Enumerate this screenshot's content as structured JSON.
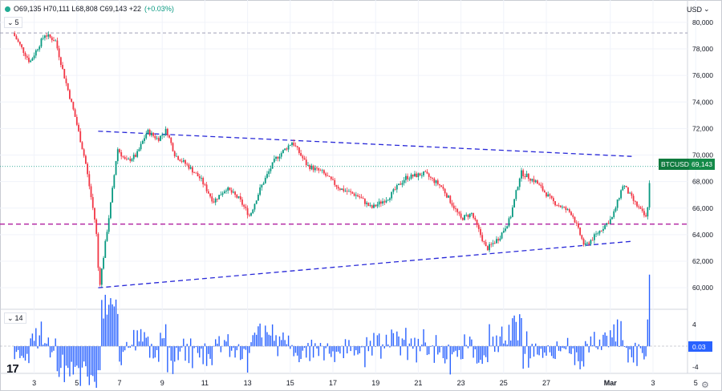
{
  "header": {
    "ohlc": "O69,135 H70,111 L68,808 C69,143 +22",
    "change_pct": "(+0.03%)",
    "interval_count": "5",
    "currency": "USD"
  },
  "symbol_tag": "BTCUSD",
  "price_tag": "69,143",
  "oscillator": {
    "period": "14",
    "value_tag": "0.03",
    "ticks": [
      "4",
      "-4"
    ]
  },
  "colors": {
    "up": "#089981",
    "down": "#f23645",
    "trendline": "#2828d8",
    "support": "#b020a0",
    "histogram": "#2962ff",
    "price_tag": "#138a48",
    "value_tag": "#2962ff"
  },
  "chart_data": {
    "type": "candlestick",
    "y_ticks": [
      "80,000",
      "78,000",
      "76,000",
      "74,000",
      "72,000",
      "70,000",
      "68,000",
      "66,000",
      "64,000",
      "62,000",
      "60,000"
    ],
    "x_ticks": [
      "3",
      "5",
      "7",
      "9",
      "11",
      "13",
      "15",
      "17",
      "19",
      "21",
      "23",
      "25",
      "27",
      "Mar",
      "3",
      "5"
    ],
    "x_tick_positions": [
      "Feb 3",
      "Feb 5",
      "Feb 7",
      "Feb 9",
      "Feb 11",
      "Feb 13",
      "Feb 15",
      "Feb 17",
      "Feb 19",
      "Feb 21",
      "Feb 23",
      "Feb 25",
      "Feb 27",
      "Mar 1",
      "Mar 3",
      "Mar 5"
    ],
    "ylim": [
      58500,
      80600
    ],
    "x_axis_start": "Feb 2",
    "x_axis_end": "Mar 6",
    "upper_trendline": [
      [
        "Feb 6",
        71800
      ],
      [
        "Mar 2",
        69900
      ]
    ],
    "lower_trendline": [
      [
        "Feb 6",
        60000
      ],
      [
        "Mar 2",
        63500
      ]
    ],
    "support_level": 64800,
    "dashed_top_level": 79200,
    "last_close": 69143,
    "price_path": [
      [
        "Feb 2",
        79200
      ],
      [
        "Feb 2.8",
        77000
      ],
      [
        "Feb 3.5",
        79100
      ],
      [
        "Feb 4",
        78600
      ],
      [
        "Feb 4.4",
        76000
      ],
      [
        "Feb 4.9",
        73000
      ],
      [
        "Feb 5.4",
        69500
      ],
      [
        "Feb 5.9",
        64500
      ],
      [
        "Feb 6.05",
        60000
      ],
      [
        "Feb 6.6",
        66500
      ],
      [
        "Feb 6.9",
        70500
      ],
      [
        "Feb 7.3",
        69500
      ],
      [
        "Feb 7.8",
        70000
      ],
      [
        "Feb 8.3",
        71800
      ],
      [
        "Feb 8.8",
        71200
      ],
      [
        "Feb 9.2",
        71900
      ],
      [
        "Feb 9.6",
        70000
      ],
      [
        "Feb 10.2",
        69200
      ],
      [
        "Feb 10.8",
        68200
      ],
      [
        "Feb 11.4",
        66500
      ],
      [
        "Feb 12",
        67500
      ],
      [
        "Feb 12.6",
        66700
      ],
      [
        "Feb 13.1",
        65400
      ],
      [
        "Feb 13.6",
        67500
      ],
      [
        "Feb 14.3",
        69700
      ],
      [
        "Feb 15.1",
        71000
      ],
      [
        "Feb 15.8",
        69200
      ],
      [
        "Feb 16.5",
        68700
      ],
      [
        "Feb 17.3",
        67500
      ],
      [
        "Feb 18.2",
        66900
      ],
      [
        "Feb 18.8",
        66000
      ],
      [
        "Feb 19.6",
        66800
      ],
      [
        "Feb 20.4",
        68300
      ],
      [
        "Feb 21.3",
        68600
      ],
      [
        "Feb 22.1",
        67600
      ],
      [
        "Feb 23",
        65200
      ],
      [
        "Feb 23.5",
        65600
      ],
      [
        "Feb 24.2",
        62900
      ],
      [
        "Feb 24.8",
        63800
      ],
      [
        "Feb 25.3",
        65200
      ],
      [
        "Feb 25.8",
        68700
      ],
      [
        "Feb 26.5",
        68000
      ],
      [
        "Feb 27.3",
        66500
      ],
      [
        "Feb 28.2",
        65600
      ],
      [
        "Feb 28.8",
        63100
      ],
      [
        "Mar 1.1",
        65300
      ],
      [
        "Mar 1.6",
        67800
      ],
      [
        "Mar 2.1",
        66500
      ],
      [
        "Mar 2.7",
        65200
      ],
      [
        "Mar 2.9",
        69143
      ]
    ]
  }
}
